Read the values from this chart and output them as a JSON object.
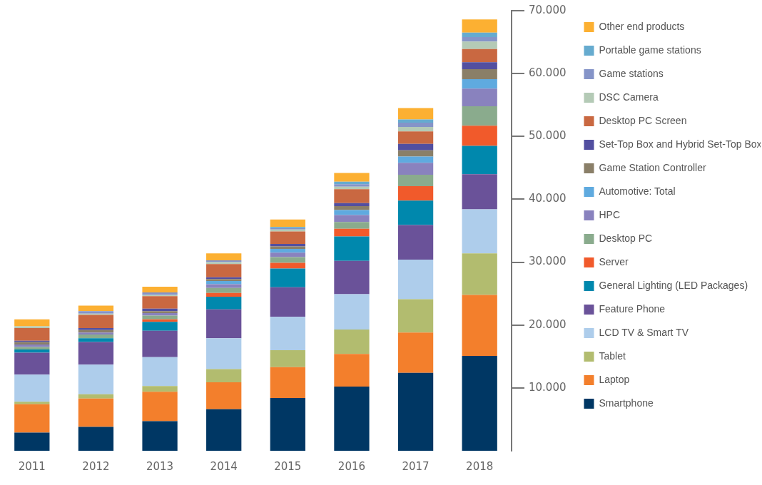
{
  "chart_data": {
    "type": "bar",
    "stacked": true,
    "categories": [
      "2011",
      "2012",
      "2013",
      "2014",
      "2015",
      "2016",
      "2017",
      "2018"
    ],
    "ylim": [
      0,
      70000
    ],
    "yticks": [
      {
        "value": 10000,
        "label": "10.000"
      },
      {
        "value": 20000,
        "label": "20.000"
      },
      {
        "value": 30000,
        "label": "30.000"
      },
      {
        "value": 40000,
        "label": "40.000"
      },
      {
        "value": 50000,
        "label": "50.000"
      },
      {
        "value": 60000,
        "label": "60.000"
      },
      {
        "value": 70000,
        "label": "70.000"
      }
    ],
    "grid": false,
    "legend": "top right",
    "series": [
      {
        "name": "Smartphone",
        "color": "#003764",
        "values": [
          2900,
          3800,
          4700,
          6600,
          8400,
          10200,
          12400,
          15100
        ]
      },
      {
        "name": "Laptop",
        "color": "#f37f2c",
        "values": [
          4500,
          4500,
          4700,
          4300,
          4900,
          5200,
          6400,
          9700
        ]
      },
      {
        "name": "Tablet",
        "color": "#b2bc6f",
        "values": [
          400,
          700,
          900,
          2100,
          2700,
          3900,
          5300,
          6600
        ]
      },
      {
        "name": "LCD TV & Smart TV",
        "color": "#aecdeb",
        "values": [
          4300,
          4700,
          4600,
          4900,
          5300,
          5600,
          6300,
          7000
        ]
      },
      {
        "name": "Feature Phone",
        "color": "#6a5299",
        "values": [
          3500,
          3600,
          4200,
          4600,
          4700,
          5300,
          5500,
          5600
        ]
      },
      {
        "name": "General Lighting (LED Packages)",
        "color": "#0088ad",
        "values": [
          500,
          600,
          1400,
          2000,
          3000,
          3900,
          3900,
          4500
        ]
      },
      {
        "name": "Server",
        "color": "#f15a2b",
        "values": [
          0,
          0,
          400,
          600,
          900,
          1200,
          2300,
          3200
        ]
      },
      {
        "name": "Desktop PC",
        "color": "#8aab8d",
        "values": [
          400,
          600,
          600,
          800,
          900,
          1100,
          1800,
          3100
        ]
      },
      {
        "name": "HPC",
        "color": "#8982be",
        "values": [
          400,
          300,
          400,
          600,
          700,
          1100,
          1900,
          2800
        ]
      },
      {
        "name": "Automotive: Total",
        "color": "#5faadf",
        "values": [
          0,
          0,
          0,
          500,
          600,
          800,
          1000,
          1500
        ]
      },
      {
        "name": "Game Station Controller",
        "color": "#8a7f68",
        "values": [
          400,
          400,
          300,
          300,
          400,
          600,
          1000,
          1600
        ]
      },
      {
        "name": "Set-Top Box and Hybrid Set-Top Box",
        "color": "#524fa0",
        "values": [
          200,
          300,
          400,
          300,
          400,
          500,
          1000,
          1100
        ]
      },
      {
        "name": "Desktop PC Screen",
        "color": "#c96841",
        "values": [
          2000,
          2100,
          2000,
          2100,
          2000,
          2200,
          2000,
          2100
        ]
      },
      {
        "name": "DSC Camera",
        "color": "#b4cab6",
        "values": [
          300,
          200,
          200,
          300,
          300,
          400,
          700,
          1200
        ]
      },
      {
        "name": "Game stations",
        "color": "#8594c8",
        "values": [
          0,
          400,
          400,
          300,
          200,
          400,
          700,
          700
        ]
      },
      {
        "name": "Portable game stations",
        "color": "#66abcf",
        "values": [
          0,
          0,
          0,
          0,
          200,
          400,
          500,
          700
        ]
      },
      {
        "name": "Other end products",
        "color": "#fcb032",
        "values": [
          1100,
          900,
          900,
          1100,
          1200,
          1400,
          1800,
          2100
        ]
      }
    ]
  }
}
